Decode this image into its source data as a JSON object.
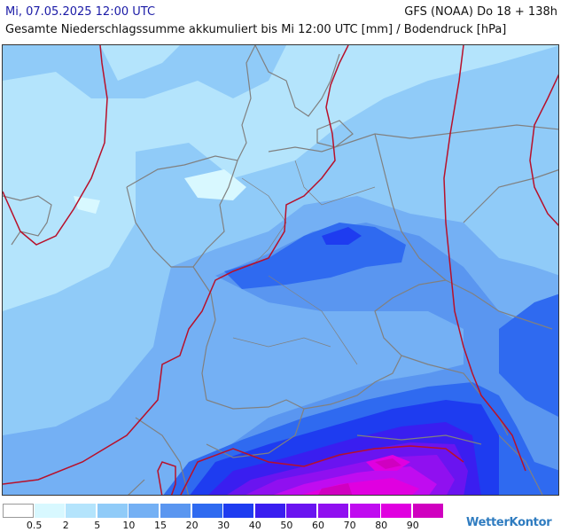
{
  "header": {
    "valid_time": "Mi, 07.05.2025 12:00 UTC",
    "model_run": "GFS (NOAA) Do 18 + 138h",
    "title": "Gesamte Niederschlagssumme akkumuliert bis Mi 12:00 UTC [mm] / Bodendruck [hPa]"
  },
  "legend": {
    "ticks": [
      "0.5",
      "2",
      "5",
      "10",
      "15",
      "20",
      "30",
      "40",
      "50",
      "60",
      "70",
      "80",
      "90"
    ],
    "colors": [
      "#ffffff",
      "#d8f8ff",
      "#b4e4fc",
      "#90cbf8",
      "#74b0f4",
      "#5a96f0",
      "#2f6af0",
      "#1e3cf0",
      "#3a1ef0",
      "#6a14f0",
      "#9010f0",
      "#c00cf0",
      "#e000e0",
      "#d000c0"
    ]
  },
  "map": {
    "base_color": "#b4e4fc",
    "border_color": "#808080",
    "isobar_color": "#b8102a"
  },
  "logo": {
    "text": "WetterKontor"
  }
}
